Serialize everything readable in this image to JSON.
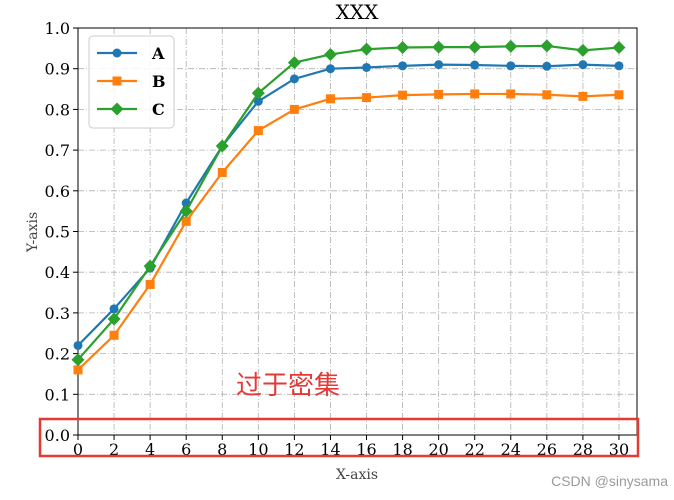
{
  "chart_data": {
    "type": "line",
    "title": "XXX",
    "xlabel": "X-axis",
    "ylabel": "Y-axis",
    "x": [
      0,
      2,
      4,
      6,
      8,
      10,
      12,
      14,
      16,
      18,
      20,
      22,
      24,
      26,
      28,
      30
    ],
    "xticks": [
      "0",
      "2",
      "4",
      "6",
      "8",
      "10",
      "12",
      "14",
      "16",
      "18",
      "20",
      "22",
      "24",
      "26",
      "28",
      "30"
    ],
    "yticks": [
      "0.0",
      "0.1",
      "0.2",
      "0.3",
      "0.4",
      "0.5",
      "0.6",
      "0.7",
      "0.8",
      "0.9",
      "1.0"
    ],
    "xlim": [
      0,
      31
    ],
    "ylim": [
      0,
      1.0
    ],
    "grid": true,
    "legend_position": "top-left",
    "series": [
      {
        "name": "A",
        "color": "#1f77b4",
        "marker": "circle",
        "values": [
          0.22,
          0.31,
          0.41,
          0.57,
          0.71,
          0.82,
          0.875,
          0.9,
          0.903,
          0.907,
          0.91,
          0.909,
          0.907,
          0.906,
          0.91,
          0.907
        ]
      },
      {
        "name": "B",
        "color": "#ff7f0e",
        "marker": "square",
        "values": [
          0.16,
          0.245,
          0.37,
          0.525,
          0.645,
          0.748,
          0.8,
          0.826,
          0.829,
          0.835,
          0.837,
          0.838,
          0.838,
          0.836,
          0.832,
          0.836
        ]
      },
      {
        "name": "C",
        "color": "#2ca02c",
        "marker": "diamond",
        "values": [
          0.185,
          0.285,
          0.415,
          0.55,
          0.71,
          0.84,
          0.915,
          0.935,
          0.948,
          0.952,
          0.953,
          0.953,
          0.955,
          0.956,
          0.945,
          0.952
        ]
      }
    ]
  },
  "annotation": {
    "text": "过于密集",
    "color": "#e53935"
  },
  "highlight_box": {
    "color": "#e53935"
  },
  "watermark": "CSDN @sinysama"
}
